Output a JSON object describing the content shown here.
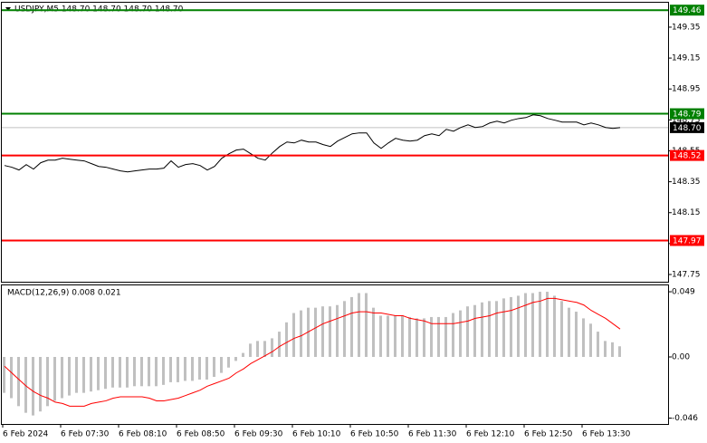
{
  "chart_data": [
    {
      "type": "line",
      "title": "USDJPY,M5  148.70 148.70 148.70 148.70",
      "ylim": [
        147.709,
        149.508
      ],
      "yticks": [
        149.35,
        149.15,
        148.95,
        148.75,
        148.55,
        148.35,
        148.15,
        147.95,
        147.75
      ],
      "series": [
        {
          "color": "#000000",
          "values": [
            148.455,
            148.444,
            148.426,
            148.461,
            148.432,
            148.473,
            148.49,
            148.49,
            148.502,
            148.496,
            148.49,
            148.485,
            148.467,
            148.449,
            148.444,
            148.432,
            148.42,
            148.414,
            148.42,
            148.426,
            148.432,
            148.432,
            148.438,
            148.485,
            148.444,
            148.461,
            148.467,
            148.455,
            148.426,
            148.449,
            148.502,
            148.531,
            148.555,
            148.561,
            148.531,
            148.502,
            148.49,
            148.537,
            148.578,
            148.607,
            148.601,
            148.619,
            148.607,
            148.607,
            148.59,
            148.578,
            148.613,
            148.637,
            148.66,
            148.666,
            148.666,
            148.601,
            148.566,
            148.601,
            148.631,
            148.619,
            148.613,
            148.619,
            148.648,
            148.66,
            148.648,
            148.689,
            148.677,
            148.701,
            148.718,
            148.701,
            148.707,
            148.73,
            148.742,
            148.73,
            148.748,
            148.759,
            148.765,
            148.783,
            148.777,
            148.759,
            148.748,
            148.736,
            148.736,
            148.736,
            148.718,
            148.73,
            148.718,
            148.701,
            148.695,
            148.7
          ]
        }
      ],
      "levels": [
        {
          "value": 149.46,
          "color": "#008000"
        },
        {
          "value": 148.79,
          "color": "#008000"
        },
        {
          "value": 148.52,
          "color": "#ff0000"
        },
        {
          "value": 147.97,
          "color": "#ff0000"
        }
      ],
      "current_price": {
        "value": 148.7,
        "label": "148.70"
      }
    },
    {
      "type": "macd",
      "title": "MACD(12,26,9) 0.008 0.021",
      "ylim": [
        -0.0504,
        0.0538
      ],
      "yticks": [
        0.049,
        {
          "value": 0,
          "label": "0.00"
        },
        -0.046
      ],
      "categories": [
        "6 Feb 2024",
        null,
        null,
        null,
        null,
        null,
        null,
        null,
        "6 Feb 07:30",
        null,
        null,
        null,
        null,
        null,
        null,
        null,
        "6 Feb 08:10",
        null,
        null,
        null,
        null,
        null,
        null,
        null,
        "6 Feb 08:50",
        null,
        null,
        null,
        null,
        null,
        null,
        null,
        "6 Feb 09:30",
        null,
        null,
        null,
        null,
        null,
        null,
        null,
        "6 Feb 10:10",
        null,
        null,
        null,
        null,
        null,
        null,
        null,
        "6 Feb 10:50",
        null,
        null,
        null,
        null,
        null,
        null,
        null,
        "6 Feb 11:30",
        null,
        null,
        null,
        null,
        null,
        null,
        null,
        "6 Feb 12:10",
        null,
        null,
        null,
        null,
        null,
        null,
        null,
        "6 Feb 12:50",
        null,
        null,
        null,
        null,
        null,
        null,
        null,
        "6 Feb 13:30",
        null,
        null,
        null,
        null,
        null
      ],
      "series": [
        {
          "style": "bar",
          "color": "#c0c0c0",
          "values": [
            -0.027,
            -0.031,
            -0.037,
            -0.042,
            -0.044,
            -0.041,
            -0.037,
            -0.033,
            -0.031,
            -0.029,
            -0.027,
            -0.027,
            -0.026,
            -0.025,
            -0.024,
            -0.023,
            -0.023,
            -0.023,
            -0.022,
            -0.022,
            -0.022,
            -0.022,
            -0.021,
            -0.019,
            -0.019,
            -0.018,
            -0.018,
            -0.017,
            -0.017,
            -0.015,
            -0.012,
            -0.008,
            -0.003,
            0.003,
            0.01,
            0.012,
            0.012,
            0.014,
            0.019,
            0.026,
            0.033,
            0.035,
            0.037,
            0.037,
            0.038,
            0.038,
            0.039,
            0.042,
            0.045,
            0.048,
            0.048,
            0.037,
            0.031,
            0.031,
            0.031,
            0.031,
            0.03,
            0.029,
            0.029,
            0.03,
            0.03,
            0.03,
            0.033,
            0.035,
            0.038,
            0.039,
            0.041,
            0.042,
            0.042,
            0.044,
            0.045,
            0.046,
            0.048,
            0.048,
            0.049,
            0.049,
            0.046,
            0.042,
            0.037,
            0.034,
            0.029,
            0.025,
            0.019,
            0.012,
            0.011,
            0.008
          ]
        },
        {
          "style": "line",
          "color": "#ff0000",
          "values": [
            -0.007,
            -0.012,
            -0.017,
            -0.022,
            -0.026,
            -0.029,
            -0.031,
            -0.034,
            -0.035,
            -0.037,
            -0.037,
            -0.037,
            -0.035,
            -0.034,
            -0.033,
            -0.031,
            -0.03,
            -0.03,
            -0.03,
            -0.03,
            -0.031,
            -0.033,
            -0.033,
            -0.032,
            -0.031,
            -0.029,
            -0.027,
            -0.025,
            -0.022,
            -0.02,
            -0.018,
            -0.016,
            -0.012,
            -0.009,
            -0.005,
            -0.002,
            0.001,
            0.004,
            0.008,
            0.011,
            0.014,
            0.016,
            0.019,
            0.022,
            0.025,
            0.027,
            0.029,
            0.031,
            0.033,
            0.034,
            0.034,
            0.033,
            0.033,
            0.032,
            0.031,
            0.031,
            0.029,
            0.028,
            0.027,
            0.025,
            0.025,
            0.025,
            0.025,
            0.026,
            0.027,
            0.029,
            0.03,
            0.031,
            0.033,
            0.034,
            0.035,
            0.037,
            0.039,
            0.041,
            0.042,
            0.044,
            0.044,
            0.043,
            0.042,
            0.041,
            0.039,
            0.035,
            0.032,
            0.029,
            0.025,
            0.021
          ]
        }
      ]
    }
  ]
}
